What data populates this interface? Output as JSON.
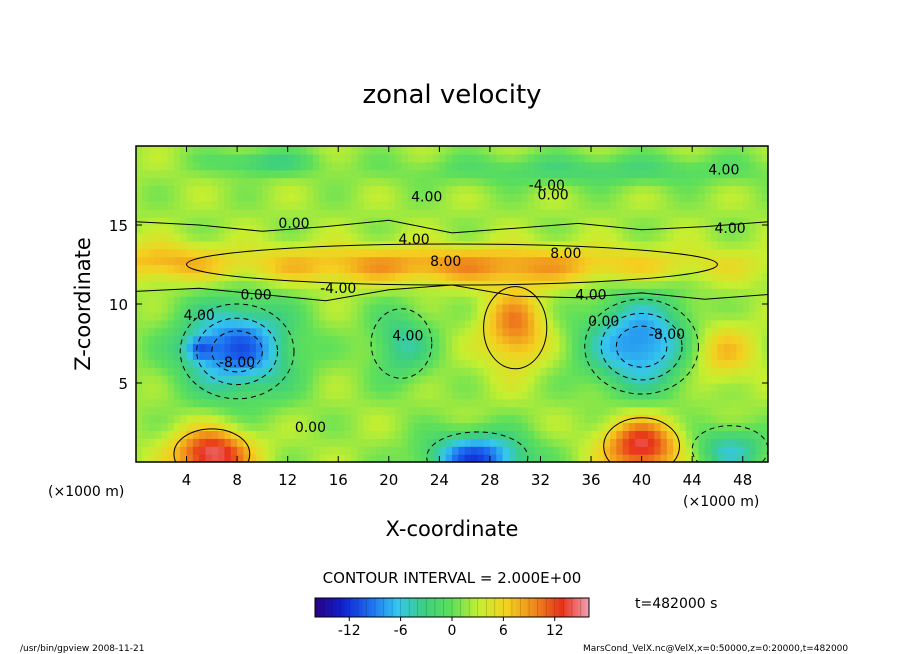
{
  "chart_data": {
    "type": "heatmap",
    "title": "zonal velocity",
    "xlabel": "X-coordinate",
    "ylabel": "Z-coordinate",
    "x_unit_left": "(×1000 m)",
    "x_unit_right": "(×1000 m)",
    "xlim": [
      0,
      50
    ],
    "ylim": [
      0,
      20
    ],
    "x_ticks": [
      4,
      8,
      12,
      16,
      20,
      24,
      28,
      32,
      36,
      40,
      44,
      48
    ],
    "y_ticks": [
      5,
      10,
      15
    ],
    "contour_interval_label": "CONTOUR INTERVAL = 2.000E+00",
    "colorbar": {
      "min": -16,
      "max": 16,
      "ticks": [
        -12,
        -6,
        0,
        6,
        12
      ]
    },
    "contour_labels": [
      {
        "text": "4.00",
        "x": 46.5,
        "y": 18.2
      },
      {
        "text": "4.00",
        "x": 23.0,
        "y": 16.5
      },
      {
        "text": "-4.00",
        "x": 32.5,
        "y": 17.2
      },
      {
        "text": "0.00",
        "x": 33.0,
        "y": 16.6
      },
      {
        "text": "0.00",
        "x": 12.5,
        "y": 14.8
      },
      {
        "text": "4.00",
        "x": 47.0,
        "y": 14.5
      },
      {
        "text": "4.00",
        "x": 22.0,
        "y": 13.8
      },
      {
        "text": "8.00",
        "x": 24.5,
        "y": 12.4
      },
      {
        "text": "8.00",
        "x": 34.0,
        "y": 12.9
      },
      {
        "text": "-4.00",
        "x": 16.0,
        "y": 10.7
      },
      {
        "text": "0.00",
        "x": 9.5,
        "y": 10.3
      },
      {
        "text": "4.00",
        "x": 36.0,
        "y": 10.3
      },
      {
        "text": "4.00",
        "x": 5.0,
        "y": 9.0
      },
      {
        "text": "4.00",
        "x": 21.5,
        "y": 7.7
      },
      {
        "text": "0.00",
        "x": 37.0,
        "y": 8.6
      },
      {
        "text": "-8.00",
        "x": 42.0,
        "y": 7.8
      },
      {
        "text": "-8.00",
        "x": 8.0,
        "y": 6.0
      },
      {
        "text": "0.00",
        "x": 13.8,
        "y": 1.9
      }
    ]
  },
  "time_label": "t=482000 s",
  "footer": {
    "left": "/usr/bin/gpview  2008-11-21",
    "right": "MarsCond_VelX.nc@VelX,x=0:50000,z=0:20000,t=482000"
  },
  "colors": {
    "palette": [
      "#2a0080",
      "#1020d0",
      "#1c6ef0",
      "#35c6f0",
      "#3ccf80",
      "#5fe05a",
      "#c6ef30",
      "#f5d020",
      "#f08a1c",
      "#e8321a",
      "#f0a0b4"
    ]
  }
}
